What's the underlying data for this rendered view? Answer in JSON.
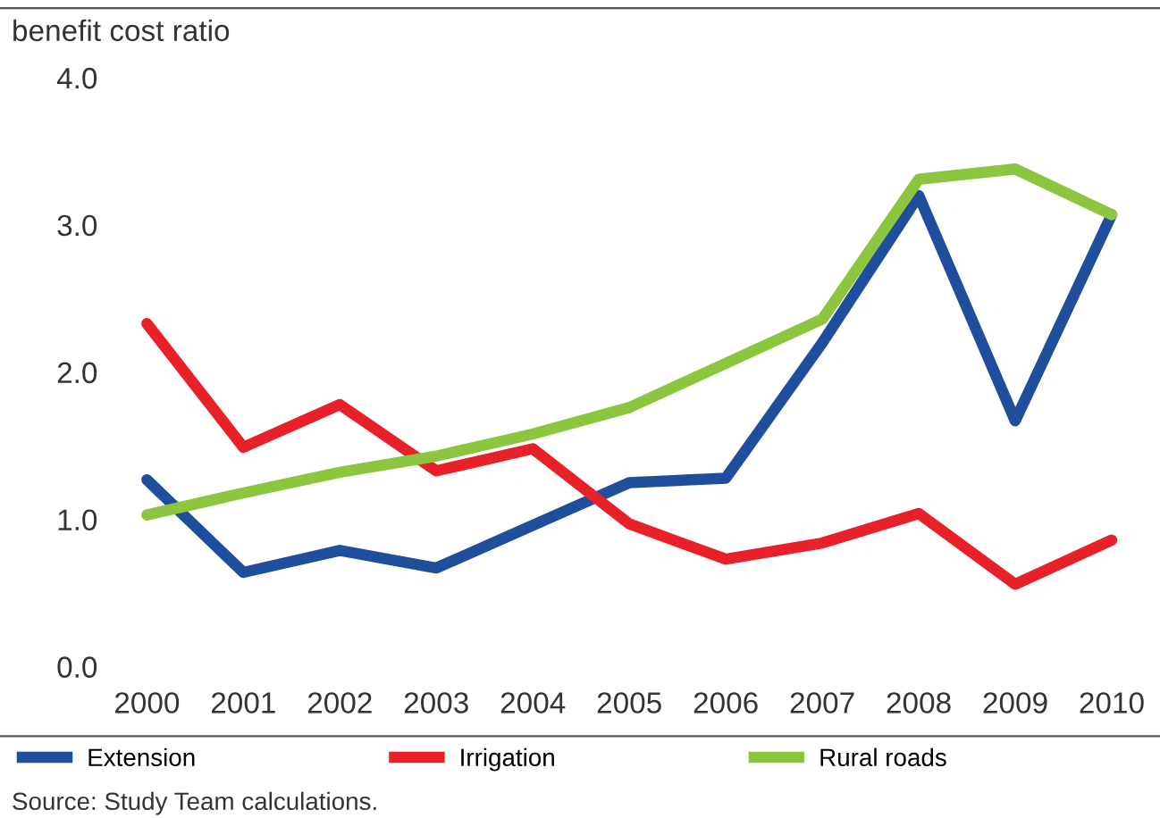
{
  "chart_data": {
    "type": "line",
    "ylabel": "benefit cost ratio",
    "categories": [
      "2000",
      "2001",
      "2002",
      "2003",
      "2004",
      "2005",
      "2006",
      "2007",
      "2008",
      "2009",
      "2010"
    ],
    "series": [
      {
        "name": "Extension",
        "color": "#1f4e9c",
        "values": [
          1.27,
          0.64,
          0.79,
          0.67,
          0.96,
          1.25,
          1.28,
          2.2,
          3.2,
          1.67,
          3.07
        ]
      },
      {
        "name": "Irrigation",
        "color": "#e8202a",
        "values": [
          2.33,
          1.49,
          1.78,
          1.33,
          1.48,
          0.97,
          0.73,
          0.84,
          1.04,
          0.56,
          0.86
        ]
      },
      {
        "name": "Rural roads",
        "color": "#8cc63f",
        "values": [
          1.03,
          1.18,
          1.32,
          1.43,
          1.58,
          1.76,
          2.06,
          2.36,
          3.31,
          3.38,
          3.07
        ]
      }
    ],
    "ylim": [
      0,
      4
    ],
    "yticks": [
      {
        "value": 0,
        "label": "0.0"
      },
      {
        "value": 1,
        "label": "1.0"
      },
      {
        "value": 2,
        "label": "2.0"
      },
      {
        "value": 3,
        "label": "3.0"
      },
      {
        "value": 4,
        "label": "4.0"
      }
    ],
    "grid": false,
    "legend": "bottom",
    "marker": "none",
    "line_style": "solid",
    "annotations": [
      "Source: Study Team calculations."
    ]
  }
}
